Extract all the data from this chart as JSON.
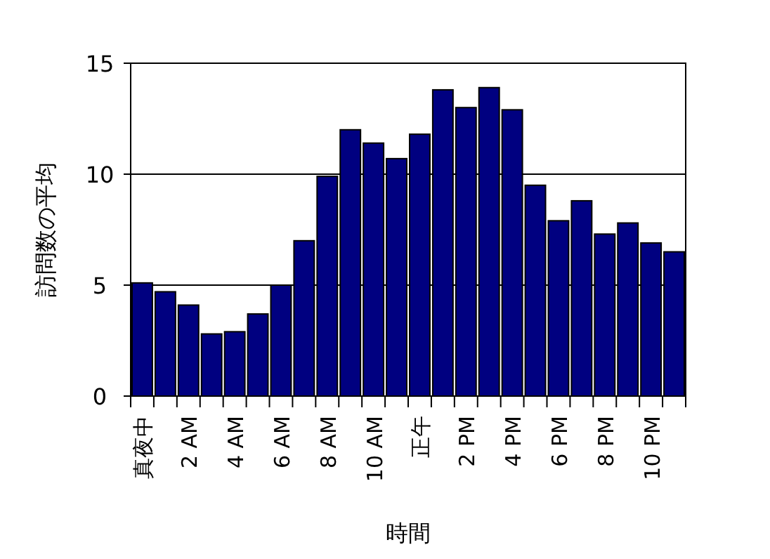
{
  "chart_data": {
    "type": "bar",
    "xlabel": "時間",
    "ylabel": "訪問数の平均",
    "categories": [
      "真夜中",
      null,
      "2 AM",
      null,
      "4 AM",
      null,
      "6 AM",
      null,
      "8 AM",
      null,
      "10 AM",
      null,
      "正午",
      null,
      "2 PM",
      null,
      "4 PM",
      null,
      "6 PM",
      null,
      "8 PM",
      null,
      "10 PM",
      null
    ],
    "values": [
      5.1,
      4.7,
      4.1,
      2.8,
      2.9,
      3.7,
      5.0,
      7.0,
      9.9,
      12.0,
      11.4,
      10.7,
      11.8,
      13.8,
      13.0,
      13.9,
      12.9,
      9.5,
      7.9,
      8.8,
      7.3,
      7.8,
      6.9,
      6.5
    ],
    "color": "#000080",
    "ylim": [
      0,
      15
    ],
    "yticks": [
      0,
      5,
      10,
      15
    ],
    "grid": "y"
  }
}
